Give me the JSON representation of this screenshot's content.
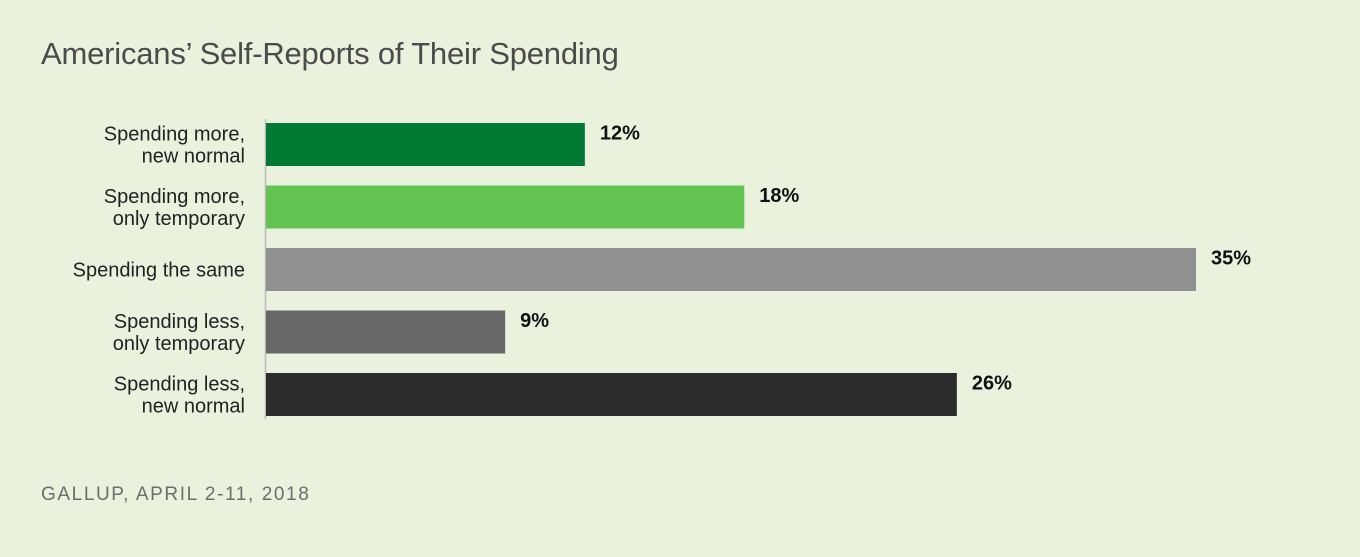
{
  "chart_data": {
    "type": "bar",
    "orientation": "horizontal",
    "title": "Americans’ Self-Reports of Their Spending",
    "source": "GALLUP, APRIL 2-11, 2018",
    "xlabel": "",
    "ylabel": "",
    "xlim": [
      0,
      35
    ],
    "grid": false,
    "categories": [
      [
        "Spending more,",
        "new normal"
      ],
      [
        "Spending more,",
        "only temporary"
      ],
      [
        "Spending the same"
      ],
      [
        "Spending less,",
        "only temporary"
      ],
      [
        "Spending less,",
        "new normal"
      ]
    ],
    "values": [
      12,
      18,
      35,
      9,
      26
    ],
    "value_labels": [
      "12%",
      "18%",
      "35%",
      "9%",
      "26%"
    ],
    "colors": [
      "#007a33",
      "#63c454",
      "#909090",
      "#676767",
      "#2c2c2c"
    ]
  }
}
